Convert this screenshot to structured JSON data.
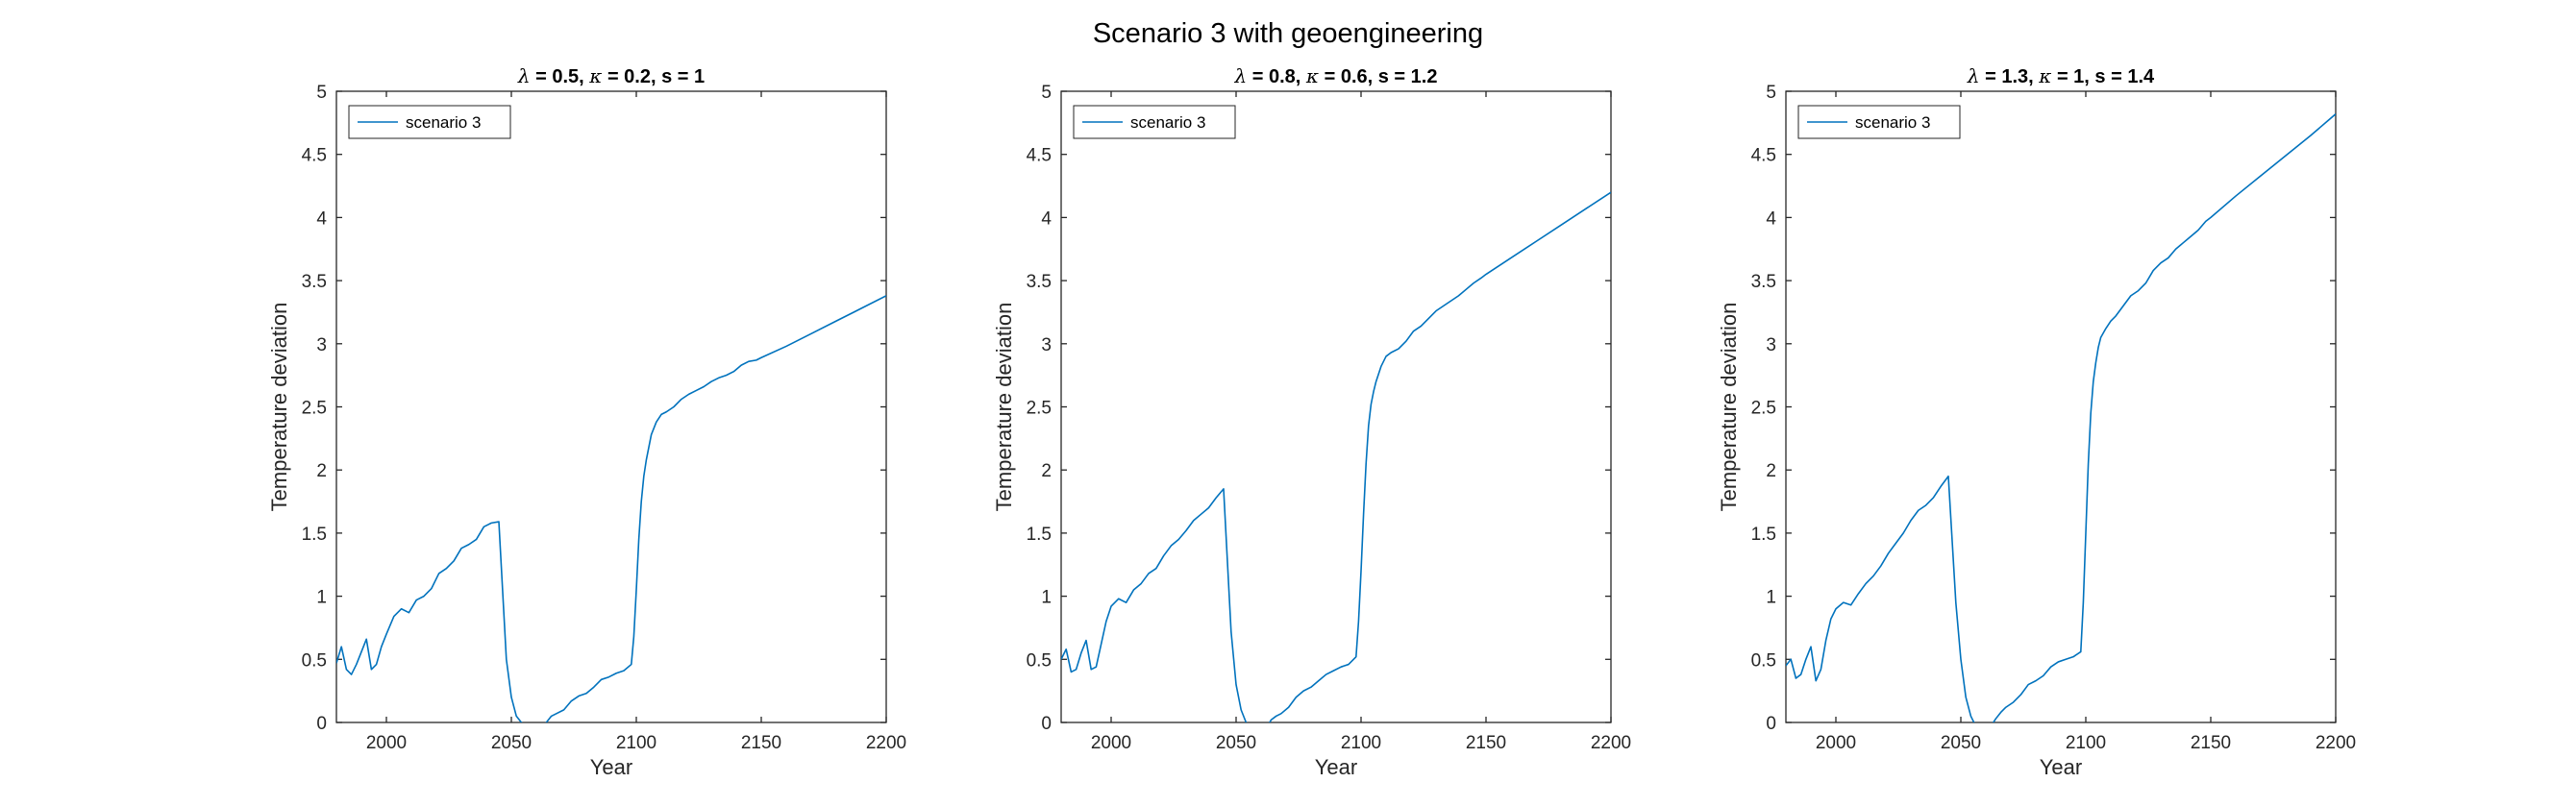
{
  "suptitle": "Scenario 3 with geoengineering",
  "chart_data": [
    {
      "type": "line",
      "title_parts": [
        {
          "text": "λ",
          "greek": true
        },
        {
          "text": " = 0.5, "
        },
        {
          "text": "κ",
          "greek": true
        },
        {
          "text": " = 0.2, s = 1"
        }
      ],
      "xlabel": "Year",
      "ylabel": "Temperature deviation",
      "xlim": [
        1980,
        2200
      ],
      "ylim": [
        0,
        5
      ],
      "xticks": [
        2000,
        2050,
        2100,
        2150,
        2200
      ],
      "yticks": [
        0,
        0.5,
        1,
        1.5,
        2,
        2.5,
        3,
        3.5,
        4,
        4.5,
        5
      ],
      "legend": "top-left",
      "grid": false,
      "series": [
        {
          "name": "scenario 3",
          "color": "#0072BD",
          "x": [
            1980,
            1982,
            1984,
            1986,
            1988,
            1990,
            1992,
            1994,
            1996,
            1998,
            2000,
            2003,
            2006,
            2009,
            2012,
            2015,
            2018,
            2021,
            2024,
            2027,
            2030,
            2033,
            2036,
            2039,
            2042,
            2045,
            2048,
            2050,
            2052,
            2054,
            2056,
            2058,
            2060,
            2062,
            2064,
            2066,
            2068,
            2071,
            2074,
            2077,
            2080,
            2083,
            2086,
            2089,
            2092,
            2095,
            2098,
            2099,
            2100,
            2101,
            2102,
            2103,
            2104,
            2105,
            2106,
            2108,
            2110,
            2112,
            2115,
            2118,
            2121,
            2124,
            2127,
            2130,
            2133,
            2136,
            2139,
            2142,
            2145,
            2148,
            2150,
            2160,
            2170,
            2180,
            2190,
            2200
          ],
          "values": [
            0.47,
            0.6,
            0.42,
            0.38,
            0.46,
            0.56,
            0.66,
            0.42,
            0.46,
            0.6,
            0.7,
            0.84,
            0.9,
            0.87,
            0.97,
            1.0,
            1.06,
            1.18,
            1.22,
            1.28,
            1.38,
            1.41,
            1.45,
            1.55,
            1.58,
            1.59,
            0.5,
            0.2,
            0.05,
            0,
            -0.05,
            -0.08,
            -0.09,
            -0.06,
            0.0,
            0.05,
            0.07,
            0.1,
            0.17,
            0.21,
            0.23,
            0.28,
            0.34,
            0.36,
            0.39,
            0.41,
            0.46,
            0.68,
            1.05,
            1.45,
            1.75,
            1.95,
            2.08,
            2.18,
            2.28,
            2.38,
            2.44,
            2.46,
            2.5,
            2.56,
            2.6,
            2.63,
            2.66,
            2.7,
            2.73,
            2.75,
            2.78,
            2.83,
            2.86,
            2.87,
            2.89,
            2.98,
            3.08,
            3.18,
            3.28,
            3.38
          ]
        }
      ]
    },
    {
      "type": "line",
      "title_parts": [
        {
          "text": "λ",
          "greek": true
        },
        {
          "text": " = 0.8, "
        },
        {
          "text": "κ",
          "greek": true
        },
        {
          "text": " = 0.6, s = 1.2"
        }
      ],
      "xlabel": "Year",
      "ylabel": "Temperature deviation",
      "xlim": [
        1980,
        2200
      ],
      "ylim": [
        0,
        5
      ],
      "xticks": [
        2000,
        2050,
        2100,
        2150,
        2200
      ],
      "yticks": [
        0,
        0.5,
        1,
        1.5,
        2,
        2.5,
        3,
        3.5,
        4,
        4.5,
        5
      ],
      "legend": "top-left",
      "grid": false,
      "series": [
        {
          "name": "scenario 3",
          "color": "#0072BD",
          "x": [
            1980,
            1982,
            1984,
            1986,
            1988,
            1990,
            1992,
            1994,
            1996,
            1998,
            2000,
            2003,
            2006,
            2009,
            2012,
            2015,
            2018,
            2021,
            2024,
            2027,
            2030,
            2033,
            2036,
            2039,
            2042,
            2045,
            2048,
            2050,
            2052,
            2054,
            2056,
            2058,
            2060,
            2062,
            2064,
            2066,
            2068,
            2071,
            2074,
            2077,
            2080,
            2083,
            2086,
            2089,
            2092,
            2095,
            2098,
            2099,
            2100,
            2101,
            2102,
            2103,
            2104,
            2105,
            2106,
            2108,
            2110,
            2112,
            2115,
            2118,
            2121,
            2124,
            2127,
            2130,
            2133,
            2136,
            2139,
            2142,
            2145,
            2148,
            2150,
            2160,
            2170,
            2180,
            2190,
            2200
          ],
          "values": [
            0.5,
            0.58,
            0.4,
            0.42,
            0.55,
            0.65,
            0.42,
            0.44,
            0.62,
            0.8,
            0.92,
            0.98,
            0.95,
            1.05,
            1.1,
            1.18,
            1.22,
            1.32,
            1.4,
            1.45,
            1.52,
            1.6,
            1.65,
            1.7,
            1.78,
            1.85,
            0.72,
            0.3,
            0.1,
            0,
            -0.08,
            -0.1,
            -0.09,
            -0.05,
            0.02,
            0.05,
            0.07,
            0.12,
            0.2,
            0.25,
            0.28,
            0.33,
            0.38,
            0.41,
            0.44,
            0.46,
            0.52,
            0.8,
            1.2,
            1.65,
            2.05,
            2.35,
            2.52,
            2.62,
            2.7,
            2.82,
            2.9,
            2.93,
            2.96,
            3.02,
            3.1,
            3.14,
            3.2,
            3.26,
            3.3,
            3.34,
            3.38,
            3.43,
            3.48,
            3.52,
            3.55,
            3.68,
            3.81,
            3.94,
            4.07,
            4.2
          ]
        }
      ]
    },
    {
      "type": "line",
      "title_parts": [
        {
          "text": "λ",
          "greek": true
        },
        {
          "text": " = 1.3, "
        },
        {
          "text": "κ",
          "greek": true
        },
        {
          "text": " = 1, s = 1.4"
        }
      ],
      "xlabel": "Year",
      "ylabel": "Temperature deviation",
      "xlim": [
        1980,
        2200
      ],
      "ylim": [
        0,
        5
      ],
      "xticks": [
        2000,
        2050,
        2100,
        2150,
        2200
      ],
      "yticks": [
        0,
        0.5,
        1,
        1.5,
        2,
        2.5,
        3,
        3.5,
        4,
        4.5,
        5
      ],
      "legend": "top-left",
      "grid": false,
      "series": [
        {
          "name": "scenario 3",
          "color": "#0072BD",
          "x": [
            1980,
            1982,
            1984,
            1986,
            1988,
            1990,
            1992,
            1994,
            1996,
            1998,
            2000,
            2003,
            2006,
            2009,
            2012,
            2015,
            2018,
            2021,
            2024,
            2027,
            2030,
            2033,
            2036,
            2039,
            2042,
            2045,
            2048,
            2050,
            2052,
            2054,
            2056,
            2058,
            2060,
            2062,
            2064,
            2066,
            2068,
            2071,
            2074,
            2077,
            2080,
            2083,
            2086,
            2089,
            2092,
            2095,
            2098,
            2099,
            2100,
            2101,
            2102,
            2103,
            2104,
            2105,
            2106,
            2108,
            2110,
            2112,
            2115,
            2118,
            2121,
            2124,
            2127,
            2130,
            2133,
            2136,
            2139,
            2142,
            2145,
            2148,
            2150,
            2160,
            2170,
            2180,
            2190,
            2200
          ],
          "values": [
            0.45,
            0.5,
            0.35,
            0.38,
            0.5,
            0.6,
            0.33,
            0.42,
            0.65,
            0.82,
            0.9,
            0.95,
            0.93,
            1.02,
            1.1,
            1.16,
            1.24,
            1.34,
            1.42,
            1.5,
            1.6,
            1.68,
            1.72,
            1.78,
            1.87,
            1.95,
            0.95,
            0.5,
            0.2,
            0.05,
            -0.03,
            -0.07,
            -0.06,
            -0.03,
            0.03,
            0.08,
            0.12,
            0.16,
            0.22,
            0.3,
            0.33,
            0.37,
            0.44,
            0.48,
            0.5,
            0.52,
            0.56,
            0.95,
            1.5,
            2.05,
            2.45,
            2.7,
            2.85,
            2.97,
            3.05,
            3.12,
            3.18,
            3.22,
            3.3,
            3.38,
            3.42,
            3.48,
            3.58,
            3.64,
            3.68,
            3.75,
            3.8,
            3.85,
            3.9,
            3.97,
            4.0,
            4.17,
            4.33,
            4.49,
            4.65,
            4.82
          ]
        }
      ]
    }
  ]
}
